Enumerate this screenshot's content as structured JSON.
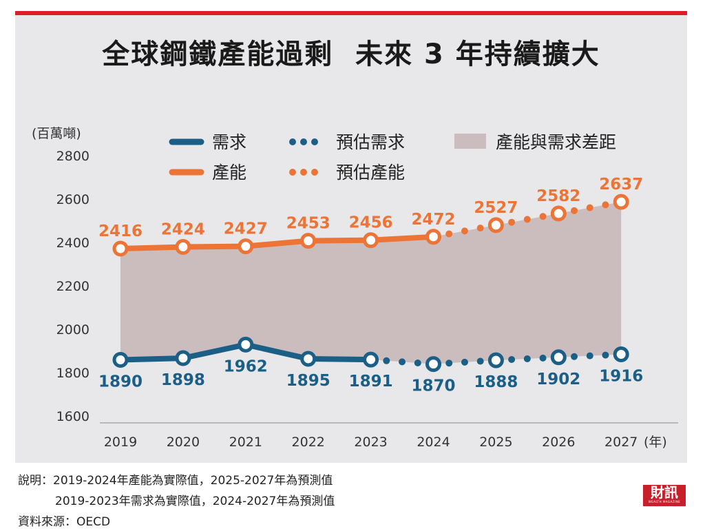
{
  "title": "全球鋼鐵產能過剩  未來 3 年持續擴大",
  "chart_data": {
    "type": "line",
    "unit_label": "(百萬噸)",
    "x_unit_label": "(年)",
    "categories": [
      "2019",
      "2020",
      "2021",
      "2022",
      "2023",
      "2024",
      "2025",
      "2026",
      "2027"
    ],
    "yticks": [
      2800,
      2600,
      2400,
      2200,
      2000,
      1800,
      1600
    ],
    "ylim": [
      1600,
      2800
    ],
    "series": [
      {
        "name": "需求",
        "color": "#1b5f87",
        "style": "solid",
        "values": [
          1890,
          1898,
          1962,
          1895,
          1891,
          null,
          null,
          null,
          null
        ]
      },
      {
        "name": "預估需求",
        "color": "#1b5f87",
        "style": "dotted",
        "values": [
          null,
          null,
          null,
          null,
          1891,
          1870,
          1888,
          1902,
          1916
        ]
      },
      {
        "name": "產能",
        "color": "#eb7436",
        "style": "solid",
        "values": [
          2416,
          2424,
          2427,
          2453,
          2456,
          2472,
          null,
          null,
          null
        ]
      },
      {
        "name": "預估產能",
        "color": "#eb7436",
        "style": "dotted",
        "values": [
          null,
          null,
          null,
          null,
          null,
          2472,
          2527,
          2582,
          2637
        ]
      }
    ],
    "area": {
      "name": "產能與需求差距",
      "color": "#cbbcbd"
    },
    "demand_labels": [
      "1890",
      "1898",
      "1962",
      "1895",
      "1891",
      "1870",
      "1888",
      "1902",
      "1916"
    ],
    "capacity_labels": [
      "2416",
      "2424",
      "2427",
      "2453",
      "2456",
      "2472",
      "2527",
      "2582",
      "2637"
    ]
  },
  "notes": {
    "line1": "說明：2019-2024年產能為實際值，2025-2027年為預測值",
    "line2": "          2019-2023年需求為實際值，2024-2027年為預測值",
    "source": "資料來源：OECD"
  },
  "logo": {
    "text": "財訊",
    "sub": "WEALTH MAGAZINE"
  }
}
